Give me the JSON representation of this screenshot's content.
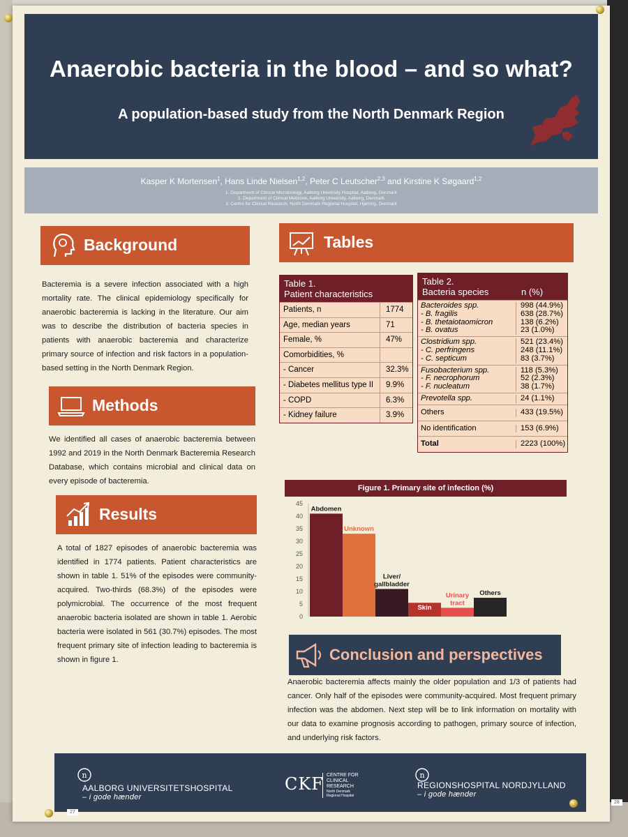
{
  "poster": {
    "title": "Anaerobic bacteria in the blood – and so what?",
    "subtitle": "A population-based study from the North Denmark Region",
    "authors": [
      {
        "name": "Kasper K Mortensen",
        "sup": "1"
      },
      {
        "name": "Hans Linde Nielsen",
        "sup": "1,2"
      },
      {
        "name": "Peter C Leutscher",
        "sup": "2,3"
      },
      {
        "name": "Kirstine K Søgaard",
        "sup": "1,2"
      }
    ],
    "authors_sep1": ", ",
    "authors_sep2": ", ",
    "authors_sep3": " and ",
    "affiliations": [
      "1.   Department of Clinical Microbiology, Aalborg University Hospital, Aalborg, Denmark",
      "2. Department of Clinical Medicine, Aalborg University, Aalborg, Denmark",
      "3. Centre for Clinical Research, North Denmark Regional Hospital, Hjørring, Denmark"
    ]
  },
  "background": {
    "heading": "Background",
    "icon": "head-brain-icon",
    "text": "Bacteremia is a severe infection associated with a high mortality rate. The clinical  epidemiology specifically for anaerobic bacteremia is lacking in the literature.  Our aim was to describe the distribution of bacteria species in patients with anaerobic bacteremia and characterize primary source of infection and risk factors in a population-based setting in the North Denmark Region."
  },
  "methods": {
    "heading": "Methods",
    "icon": "laptop-icon",
    "text": "We identified all cases of anaerobic bacteremia between 1992 and 2019 in the North Denmark Bacteremia Research Database, which contains microbial and clinical data on every episode of bacteremia."
  },
  "results": {
    "heading": "Results",
    "icon": "growth-chart-icon",
    "text": "A total of 1827 episodes of anaerobic bacteremia was identified in 1774 patients. Patient characteristics are shown in table 1. 51% of the episodes were community-acquired. Two-thirds (68.3%) of the episodes were polymicrobial. The occurrence of the most frequent anaerobic bacteria isolated are shown in table 1. Aerobic bacteria were isolated in 561 (30.7%) episodes. The most frequent primary site of infection leading to bacteremia is shown in figure 1."
  },
  "tables_section": {
    "heading": "Tables",
    "icon": "presentation-board-icon"
  },
  "table1": {
    "title_line1": "Table 1.",
    "title_line2": "Patient characteristics",
    "rows": [
      {
        "label": "Patients, n",
        "value": "1774"
      },
      {
        "label": "Age, median years",
        "value": "71"
      },
      {
        "label": "Female, %",
        "value": "47%"
      },
      {
        "label": "Comorbidities, %",
        "value": ""
      },
      {
        "label": " - Cancer",
        "value": "32.3%"
      },
      {
        "label": " - Diabetes mellitus type II",
        "value": "9.9%"
      },
      {
        "label": " - COPD",
        "value": "6.3%"
      },
      {
        "label": " - Kidney failure",
        "value": "3.9%"
      }
    ]
  },
  "table2": {
    "title_line1": "Table 2.",
    "title_line2": "Bacteria species",
    "col2": "n (%)",
    "groups": [
      {
        "rows": [
          {
            "label": "Bacteroides spp.",
            "value": "998 (44.9%)",
            "italic": true
          },
          {
            "label": " - B. fragilis",
            "value": "638 (28.7%)",
            "italic": true
          },
          {
            "label": " - B. thetaiotaomicron",
            "value": "138 (6.2%)",
            "italic": true
          },
          {
            "label": " - B. ovatus",
            "value": "23 (1.0%)",
            "italic": true
          }
        ]
      },
      {
        "rows": [
          {
            "label": "Clostridium spp.",
            "value": "521 (23.4%)",
            "italic": true
          },
          {
            "label": " - C. perfringens",
            "value": "248 (11.1%)",
            "italic": true
          },
          {
            "label": " - C. septicum",
            "value": "83 (3.7%)",
            "italic": true
          }
        ]
      },
      {
        "rows": [
          {
            "label": "Fusobacterium spp.",
            "value": "118 (5.3%)",
            "italic": true
          },
          {
            "label": " - F. necrophorum",
            "value": "52 (2.3%)",
            "italic": true
          },
          {
            "label": " - F. nucleatum",
            "value": "38 (1.7%)",
            "italic": true
          }
        ]
      },
      {
        "rows": [
          {
            "label": "Prevotella spp.",
            "value": "24 (1.1%)",
            "italic": true
          }
        ]
      },
      {
        "rows": [
          {
            "label": "Others",
            "value": "433 (19.5%)",
            "italic": false
          }
        ]
      },
      {
        "rows": [
          {
            "label": "No identification",
            "value": "153 (6.9%)",
            "italic": false
          }
        ]
      },
      {
        "rows": [
          {
            "label": "Total",
            "value": "2223 (100%)",
            "italic": false,
            "bold": true
          }
        ]
      }
    ]
  },
  "chart_data": {
    "type": "bar",
    "title": "Figure 1. Primary site of infection (%)",
    "xlabel": "",
    "ylabel": "",
    "ylim": [
      0,
      45
    ],
    "yticks": [
      "0",
      "5",
      "10",
      "15",
      "20",
      "25",
      "30",
      "35",
      "40",
      "45"
    ],
    "grid": false,
    "categories": [
      "Abdomen",
      "Unknown",
      "Liver/ gallbladder",
      "Skin",
      "Urinary tract",
      "Others"
    ],
    "label_lines": [
      [
        "Abdomen"
      ],
      [
        "Unknown"
      ],
      [
        "Liver/",
        "gallbladder"
      ],
      [
        "Skin"
      ],
      [
        "Urinary",
        "tract"
      ],
      [
        "Others"
      ]
    ],
    "values": [
      41,
      33,
      11,
      5.5,
      3.5,
      7.5
    ],
    "colors": [
      "#6e1f28",
      "#e0703a",
      "#3a1a22",
      "#b5332d",
      "#e5504c",
      "#262626"
    ],
    "label_colors": [
      "#1a1a1a",
      "#e0703a",
      "#1a1a1a",
      "#ffffff",
      "#e5504c",
      "#1a1a1a"
    ]
  },
  "conclusion": {
    "heading": "Conclusion and perspectives",
    "icon": "megaphone-icon",
    "text": "Anaerobic bacteremia affects mainly the older population and 1/3 of patients had cancer. Only half of the episodes were community-acquired. Most frequent primary infection was the abdomen. Next step will be to link information on mortality with our data to examine prognosis according to pathogen, primary source of infection, and underlying risk factors."
  },
  "footer": {
    "logo1_main": "AALBORG UNIVERSITETSHOSPITAL",
    "logo1_sub": "– i gode hænder",
    "logo2_mark": "CKF",
    "logo2_line1": "CENTRE FOR",
    "logo2_line2": "CLINICAL",
    "logo2_line3": "RESEARCH",
    "logo2_line4": "North Denmark",
    "logo2_line5": "Regional Hospital",
    "logo3_main": "REGIONSHOSPITAL NORDJYLLAND",
    "logo3_sub": "– i gode hænder"
  },
  "tags": {
    "left": "27",
    "right": "28"
  },
  "colors": {
    "navy": "#2f3e52",
    "orange": "#c8562e",
    "maroon": "#6e1f28",
    "cream": "#f3eddc"
  }
}
